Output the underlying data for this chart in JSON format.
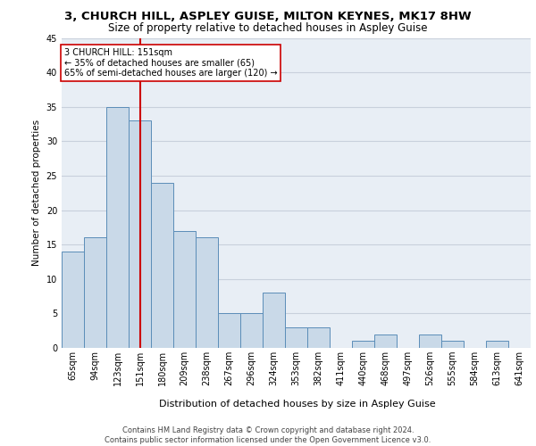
{
  "title1": "3, CHURCH HILL, ASPLEY GUISE, MILTON KEYNES, MK17 8HW",
  "title2": "Size of property relative to detached houses in Aspley Guise",
  "xlabel": "Distribution of detached houses by size in Aspley Guise",
  "ylabel": "Number of detached properties",
  "footnote": "Contains HM Land Registry data © Crown copyright and database right 2024.\nContains public sector information licensed under the Open Government Licence v3.0.",
  "bin_labels": [
    "65sqm",
    "94sqm",
    "123sqm",
    "151sqm",
    "180sqm",
    "209sqm",
    "238sqm",
    "267sqm",
    "296sqm",
    "324sqm",
    "353sqm",
    "382sqm",
    "411sqm",
    "440sqm",
    "468sqm",
    "497sqm",
    "526sqm",
    "555sqm",
    "584sqm",
    "613sqm",
    "641sqm"
  ],
  "bar_values": [
    14,
    16,
    35,
    33,
    24,
    17,
    16,
    5,
    5,
    8,
    3,
    3,
    0,
    1,
    2,
    0,
    2,
    1,
    0,
    1,
    0
  ],
  "bar_color": "#c9d9e8",
  "bar_edge_color": "#5b8db8",
  "property_line_x": 3,
  "property_label": "3 CHURCH HILL: 151sqm",
  "annotation_line1": "← 35% of detached houses are smaller (65)",
  "annotation_line2": "65% of semi-detached houses are larger (120) →",
  "annotation_box_color": "#ffffff",
  "annotation_box_edge": "#cc0000",
  "vline_color": "#cc0000",
  "grid_color": "#c8d0dc",
  "background_color": "#e8eef5",
  "ylim": [
    0,
    45
  ],
  "yticks": [
    0,
    5,
    10,
    15,
    20,
    25,
    30,
    35,
    40,
    45
  ],
  "title1_fontsize": 9.5,
  "title2_fontsize": 8.5,
  "ylabel_fontsize": 7.5,
  "xlabel_fontsize": 8.0,
  "tick_fontsize": 7.0,
  "annot_fontsize": 7.0,
  "footnote_fontsize": 6.0
}
